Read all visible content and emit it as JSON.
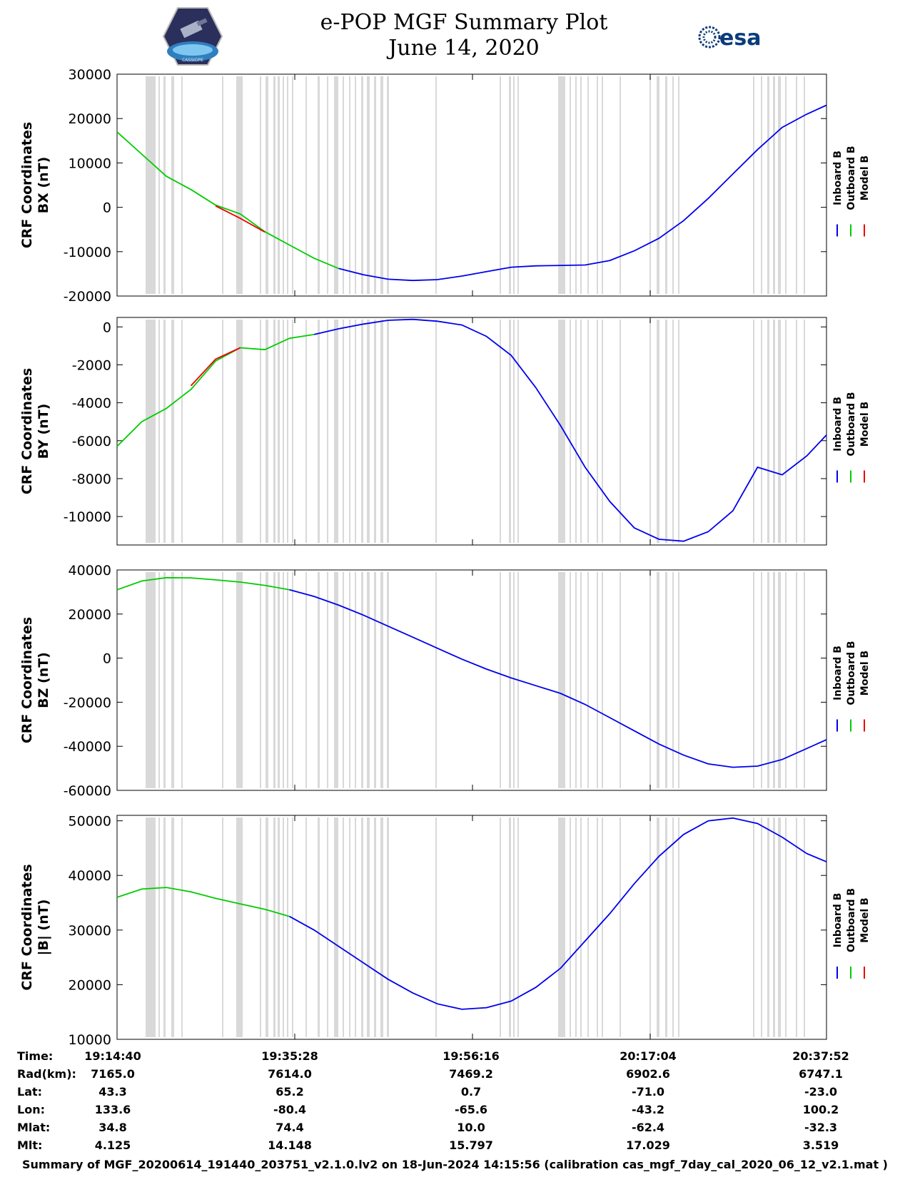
{
  "header": {
    "title": "e-POP MGF Summary Plot",
    "date": "June 14, 2020",
    "mission_logo_text": "CASSIOPE",
    "agency_logo_text": "esa"
  },
  "colors": {
    "inboard": "#0000ee",
    "outboard": "#00cc00",
    "model": "#ee0000",
    "shading": "#d9d9d9"
  },
  "chart_data": [
    {
      "type": "line",
      "ylabel_line1": "CRF Coordinates",
      "ylabel_line2": "BX (nT)",
      "ylim": [
        -20000,
        30000
      ],
      "yticks": [
        30000,
        20000,
        10000,
        0,
        -10000,
        -20000
      ],
      "legend": [
        "Inboard B",
        "Outboard B",
        "Model B"
      ],
      "x": [
        0,
        40,
        80,
        120,
        160,
        200,
        240,
        280,
        320,
        360,
        400,
        440,
        480,
        520,
        560,
        600,
        640,
        680,
        720,
        760,
        800,
        840,
        880,
        920,
        960,
        1000,
        1040,
        1080,
        1120,
        1152
      ],
      "series": [
        {
          "name": "Outboard B",
          "values": [
            17000,
            12000,
            7000,
            4000,
            500,
            -1500,
            -5500,
            -8500,
            -11500,
            -13800,
            null,
            null,
            null,
            null,
            null,
            null,
            null,
            null,
            null,
            null,
            null,
            null,
            null,
            null,
            null,
            null,
            null,
            null,
            null,
            null
          ]
        },
        {
          "name": "Model B",
          "values": [
            null,
            null,
            null,
            null,
            300,
            -2500,
            -5600,
            null,
            null,
            null,
            null,
            null,
            null,
            null,
            null,
            null,
            null,
            null,
            null,
            null,
            null,
            null,
            null,
            null,
            null,
            null,
            null,
            null,
            null,
            null
          ]
        },
        {
          "name": "Inboard B",
          "values": [
            null,
            null,
            null,
            null,
            null,
            null,
            null,
            null,
            null,
            -13800,
            -15200,
            -16200,
            -16500,
            -16300,
            -15500,
            -14500,
            -13500,
            -13200,
            -13100,
            -13000,
            -12000,
            -9800,
            -7000,
            -3000,
            2000,
            7500,
            13000,
            18000,
            21000,
            23000
          ]
        }
      ]
    },
    {
      "type": "line",
      "ylabel_line1": "CRF Coordinates",
      "ylabel_line2": "BY (nT)",
      "ylim": [
        -11500,
        500
      ],
      "yticks": [
        0,
        -2000,
        -4000,
        -6000,
        -8000,
        -10000
      ],
      "legend": [
        "Inboard B",
        "Outboard B",
        "Model B"
      ],
      "x": [
        0,
        40,
        80,
        120,
        160,
        200,
        240,
        280,
        320,
        360,
        400,
        440,
        480,
        520,
        560,
        600,
        640,
        680,
        720,
        760,
        800,
        840,
        880,
        920,
        960,
        1000,
        1040,
        1080,
        1120,
        1152
      ],
      "series": [
        {
          "name": "Outboard B",
          "values": [
            -6300,
            -5000,
            -4300,
            -3300,
            -1800,
            -1100,
            -1200,
            -600,
            -400,
            null,
            null,
            null,
            null,
            null,
            null,
            null,
            null,
            null,
            null,
            null,
            null,
            null,
            null,
            null,
            null,
            null,
            null,
            null,
            null,
            null
          ]
        },
        {
          "name": "Model B",
          "values": [
            null,
            null,
            null,
            -3100,
            -1700,
            -1100,
            null,
            null,
            null,
            null,
            null,
            null,
            null,
            null,
            null,
            null,
            null,
            null,
            null,
            null,
            null,
            null,
            null,
            null,
            null,
            null,
            null,
            null,
            null,
            null
          ]
        },
        {
          "name": "Inboard B",
          "values": [
            null,
            null,
            null,
            null,
            null,
            null,
            null,
            null,
            -400,
            -100,
            150,
            350,
            400,
            300,
            100,
            -500,
            -1500,
            -3200,
            -5200,
            -7400,
            -9200,
            -10600,
            -11200,
            -11300,
            -10800,
            -9700,
            -7400,
            -7800,
            -6800,
            -5700
          ]
        }
      ]
    },
    {
      "type": "line",
      "ylabel_line1": "CRF Coordinates",
      "ylabel_line2": "BZ (nT)",
      "ylim": [
        -60000,
        40000
      ],
      "yticks": [
        40000,
        20000,
        0,
        -20000,
        -40000,
        -60000
      ],
      "legend": [
        "Inboard B",
        "Outboard B",
        "Model B"
      ],
      "x": [
        0,
        40,
        80,
        120,
        160,
        200,
        240,
        280,
        320,
        360,
        400,
        440,
        480,
        520,
        560,
        600,
        640,
        680,
        720,
        760,
        800,
        840,
        880,
        920,
        960,
        1000,
        1040,
        1080,
        1120,
        1152
      ],
      "series": [
        {
          "name": "Outboard B",
          "values": [
            31000,
            35000,
            36500,
            36400,
            35500,
            34500,
            33000,
            31000,
            null,
            null,
            null,
            null,
            null,
            null,
            null,
            null,
            null,
            null,
            null,
            null,
            null,
            null,
            null,
            null,
            null,
            null,
            null,
            null,
            null,
            null
          ]
        },
        {
          "name": "Inboard B",
          "values": [
            null,
            null,
            null,
            null,
            null,
            null,
            null,
            31000,
            28000,
            24000,
            19500,
            14500,
            9500,
            4500,
            -500,
            -5000,
            -9000,
            -12500,
            -16000,
            -21000,
            -27000,
            -33000,
            -39000,
            -44000,
            -48000,
            -49500,
            -49000,
            -46000,
            -41000,
            -37000
          ]
        }
      ]
    },
    {
      "type": "line",
      "ylabel_line1": "CRF Coordinates",
      "ylabel_line2": "|B| (nT)",
      "ylim": [
        10000,
        51000
      ],
      "yticks": [
        50000,
        40000,
        30000,
        20000,
        10000
      ],
      "legend": [
        "Inboard B",
        "Outboard B",
        "Model B"
      ],
      "x": [
        0,
        40,
        80,
        120,
        160,
        200,
        240,
        280,
        320,
        360,
        400,
        440,
        480,
        520,
        560,
        600,
        640,
        680,
        720,
        760,
        800,
        840,
        880,
        920,
        960,
        1000,
        1040,
        1080,
        1120,
        1152
      ],
      "series": [
        {
          "name": "Outboard B",
          "values": [
            36000,
            37500,
            37800,
            37000,
            35800,
            34800,
            33800,
            32500,
            null,
            null,
            null,
            null,
            null,
            null,
            null,
            null,
            null,
            null,
            null,
            null,
            null,
            null,
            null,
            null,
            null,
            null,
            null,
            null,
            null,
            null
          ]
        },
        {
          "name": "Inboard B",
          "values": [
            null,
            null,
            null,
            null,
            null,
            null,
            null,
            32500,
            30000,
            27000,
            24000,
            21000,
            18500,
            16500,
            15500,
            15800,
            17000,
            19500,
            23000,
            28000,
            33000,
            38500,
            43500,
            47500,
            50000,
            50500,
            49500,
            47000,
            44000,
            42500
          ]
        }
      ]
    }
  ],
  "info_table": {
    "labels": [
      "Time:",
      "Rad(km):",
      "Lat:",
      "Lon:",
      "Mlat:",
      "Mlt:"
    ],
    "columns": [
      {
        "values": [
          "19:14:40",
          "7165.0",
          "43.3",
          "133.6",
          "34.8",
          "4.125"
        ]
      },
      {
        "values": [
          "19:35:28",
          "7614.0",
          "65.2",
          "-80.4",
          "74.4",
          "14.148"
        ]
      },
      {
        "values": [
          "19:56:16",
          "7469.2",
          "0.7",
          "-65.6",
          "10.0",
          "15.797"
        ]
      },
      {
        "values": [
          "20:17:04",
          "6902.6",
          "-71.0",
          "-43.2",
          "-62.4",
          "17.029"
        ]
      },
      {
        "values": [
          "20:37:52",
          "6747.1",
          "-23.0",
          "100.2",
          "-32.3",
          "3.519"
        ]
      }
    ]
  },
  "footer": "Summary of MGF_20200614_191440_203751_v2.1.0.lv2 on 18-Jun-2024 14:15:56 (calibration cas_mgf_7day_cal_2020_06_12_v2.1.mat )"
}
